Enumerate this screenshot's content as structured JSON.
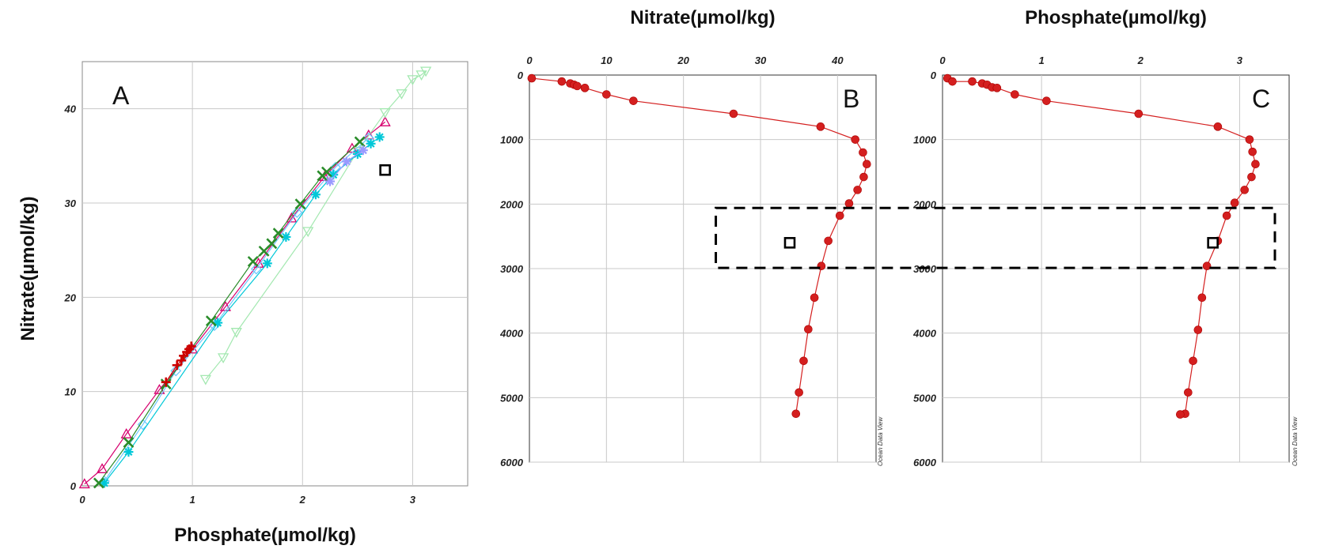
{
  "figure": {
    "panelA": {
      "letter": "A",
      "xlabel": "Phosphate(µmol/kg)",
      "ylabel": "Nitrate(µmol/kg)",
      "xticks": [
        "0",
        "1",
        "2",
        "3"
      ],
      "yticks": [
        "0",
        "10",
        "20",
        "30",
        "40"
      ]
    },
    "panelB": {
      "letter": "B",
      "title": "Nitrate(µmol/kg)",
      "xticks": [
        "0",
        "10",
        "20",
        "30",
        "40"
      ],
      "yticks": [
        "0",
        "1000",
        "2000",
        "3000",
        "4000",
        "5000",
        "6000"
      ],
      "watermark": "Ocean Data View"
    },
    "panelC": {
      "letter": "C",
      "title": "Phosphate(µmol/kg)",
      "xticks": [
        "0",
        "1",
        "2",
        "3"
      ],
      "yticks": [
        "0",
        "1000",
        "2000",
        "3000",
        "4000",
        "5000",
        "6000"
      ],
      "watermark": "Ocean Data View"
    }
  },
  "chart_data": [
    {
      "type": "scatter",
      "panel": "A",
      "xlabel": "Phosphate(µmol/kg)",
      "ylabel": "Nitrate(µmol/kg)",
      "xlim": [
        0,
        3.5
      ],
      "ylim": [
        0,
        45
      ],
      "grid": true,
      "series": [
        {
          "color": "#d6006e",
          "marker": "triangle-up",
          "x": [
            0.02,
            0.18,
            0.4,
            0.7,
            1.0,
            1.3,
            1.6,
            1.9,
            2.2,
            2.45,
            2.6,
            2.75
          ],
          "y": [
            0.2,
            1.8,
            5.5,
            10.2,
            14.5,
            19.0,
            23.6,
            28.4,
            32.8,
            35.8,
            37.2,
            38.6
          ]
        },
        {
          "color": "#a3e8b0",
          "marker": "triangle-down",
          "x": [
            1.12,
            1.28,
            1.4,
            2.05,
            2.5,
            2.75,
            2.9,
            3.0,
            3.08,
            3.12
          ],
          "y": [
            11.3,
            13.6,
            16.3,
            27.0,
            35.5,
            39.6,
            41.6,
            43.1,
            43.6,
            44.0
          ]
        },
        {
          "color": "#6ec9ff",
          "marker": "diamond",
          "x": [
            0.2,
            0.55,
            0.85,
            1.2,
            1.58,
            1.95,
            2.3,
            2.6
          ],
          "y": [
            0.5,
            6.5,
            12.2,
            17.0,
            23.0,
            29.0,
            33.8,
            36.9
          ]
        },
        {
          "color": "#00c8d8",
          "marker": "asterisk",
          "x": [
            0.2,
            0.42,
            1.23,
            1.68,
            1.85,
            2.12,
            2.28,
            2.5,
            2.62,
            2.7
          ],
          "y": [
            0.3,
            3.6,
            17.3,
            23.6,
            26.4,
            30.9,
            33.0,
            35.2,
            36.3,
            37.0
          ]
        },
        {
          "color": "#2a8c2a",
          "marker": "x",
          "x": [
            0.15,
            0.42,
            0.76,
            1.17,
            1.55,
            1.65,
            1.72,
            1.78,
            1.98,
            2.18,
            2.22,
            2.52
          ],
          "y": [
            0.3,
            4.6,
            10.8,
            17.5,
            23.8,
            24.9,
            25.7,
            26.8,
            29.9,
            32.9,
            33.3,
            36.5
          ]
        },
        {
          "color": "#cc0000",
          "marker": "plus",
          "x": [
            0.76,
            0.86,
            0.9,
            0.92,
            0.95,
            0.97,
            0.99
          ],
          "y": [
            11.0,
            12.8,
            13.3,
            13.8,
            14.2,
            14.5,
            14.8
          ]
        },
        {
          "color": "#9a9aff",
          "marker": "star",
          "x": [
            2.25,
            2.4,
            2.55
          ],
          "y": [
            32.3,
            34.4,
            35.6
          ]
        },
        {
          "color": "#000000",
          "marker": "square-open",
          "x": [
            2.75
          ],
          "y": [
            33.5
          ]
        }
      ]
    },
    {
      "type": "line",
      "panel": "B",
      "title": "Nitrate(µmol/kg)",
      "xlim": [
        0,
        45
      ],
      "ylim": [
        6000,
        0
      ],
      "grid": true,
      "series": [
        {
          "color": "#d41f1f",
          "x": [
            0.3,
            4.2,
            5.3,
            5.8,
            6.2,
            7.2,
            10.0,
            13.5,
            26.5,
            37.8,
            42.3,
            43.3,
            43.8,
            43.4,
            42.6,
            41.5,
            40.3,
            38.8,
            37.9,
            37.0,
            36.2,
            35.6,
            35.0,
            34.6
          ],
          "y": [
            50,
            100,
            130,
            150,
            170,
            200,
            300,
            400,
            600,
            800,
            1000,
            1200,
            1380,
            1580,
            1780,
            1990,
            2180,
            2570,
            2960,
            3450,
            3940,
            4430,
            4920,
            5250
          ]
        }
      ],
      "annotations": [
        {
          "type": "open-square",
          "x": 33.8,
          "y": 2600
        },
        {
          "type": "dashed-box",
          "x": [
            24.2,
            90
          ],
          "y": [
            2060,
            2990
          ]
        }
      ]
    },
    {
      "type": "line",
      "panel": "C",
      "title": "Phosphate(µmol/kg)",
      "xlim": [
        0,
        3.5
      ],
      "ylim": [
        6000,
        0
      ],
      "grid": true,
      "series": [
        {
          "color": "#d41f1f",
          "x": [
            0.05,
            0.1,
            0.3,
            0.4,
            0.45,
            0.5,
            0.55,
            0.73,
            1.05,
            1.98,
            2.78,
            3.1,
            3.13,
            3.16,
            3.12,
            3.05,
            2.95,
            2.87,
            2.78,
            2.67,
            2.62,
            2.58,
            2.53,
            2.48,
            2.45,
            2.4
          ],
          "y": [
            50,
            100,
            100,
            130,
            150,
            190,
            200,
            300,
            400,
            600,
            800,
            1000,
            1190,
            1380,
            1580,
            1780,
            1980,
            2180,
            2570,
            2960,
            3450,
            3950,
            4430,
            4920,
            5250,
            5260
          ]
        }
      ],
      "annotations": [
        {
          "type": "open-square",
          "x": 2.73,
          "y": 2600
        }
      ]
    }
  ]
}
